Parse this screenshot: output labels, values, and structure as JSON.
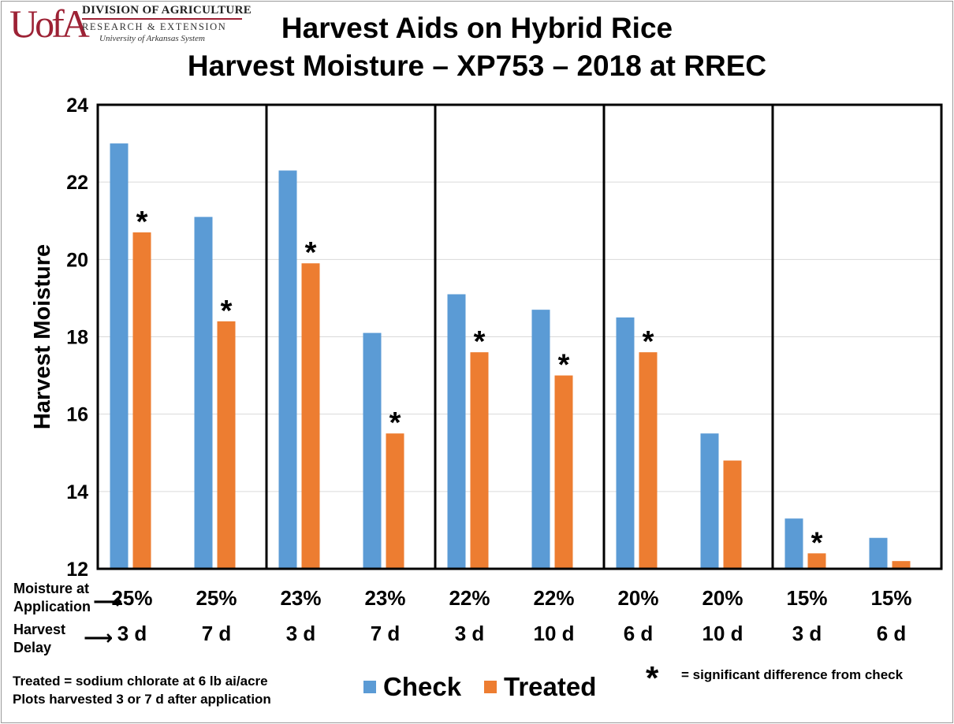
{
  "logo": {
    "mark": "UofA",
    "line1": "DIVISION OF AGRICULTURE",
    "line2": "RESEARCH & EXTENSION",
    "line3": "University of Arkansas System"
  },
  "header": {
    "title_line1": "Harvest Aids on Hybrid Rice",
    "title_line2": "Harvest Moisture – XP753 – 2018 at RREC"
  },
  "row_labels": {
    "moisture_line1": "Moisture at",
    "moisture_line2": "Application",
    "delay_line1": "Harvest",
    "delay_line2": "Delay",
    "arrow": "⟶"
  },
  "footnotes": {
    "line1": "Treated = sodium chlorate at 6 lb ai/acre",
    "line2": "Plots harvested 3 or 7 d after application"
  },
  "legend": {
    "check": "Check",
    "treated": "Treated",
    "sig_star": "*",
    "sig_text": "= significant difference from check"
  },
  "colors": {
    "check": "#5b9bd5",
    "treated": "#ed7d31",
    "frame": "#000000",
    "grid": "#d9d9d9"
  },
  "chart_data": {
    "type": "bar",
    "ylabel": "Harvest Moisture",
    "ylim": [
      12,
      24
    ],
    "yticks": [
      12,
      14,
      16,
      18,
      20,
      22,
      24
    ],
    "grid": true,
    "categories": [
      "3 d",
      "7 d",
      "3 d",
      "7 d",
      "3 d",
      "10 d",
      "6 d",
      "10 d",
      "3 d",
      "6 d"
    ],
    "moisture_at_application": [
      "25%",
      "25%",
      "23%",
      "23%",
      "22%",
      "22%",
      "20%",
      "20%",
      "15%",
      "15%"
    ],
    "harvest_delay": [
      "3 d",
      "7 d",
      "3 d",
      "7 d",
      "3 d",
      "10 d",
      "6 d",
      "10 d",
      "3 d",
      "6 d"
    ],
    "panels": [
      [
        0,
        1
      ],
      [
        2,
        3
      ],
      [
        4,
        5
      ],
      [
        6,
        7
      ],
      [
        8,
        9
      ]
    ],
    "series": [
      {
        "name": "Check",
        "values": [
          23.0,
          21.1,
          22.3,
          18.1,
          19.1,
          18.7,
          18.5,
          15.5,
          13.3,
          12.8
        ]
      },
      {
        "name": "Treated",
        "values": [
          20.7,
          18.4,
          19.9,
          15.5,
          17.6,
          17.0,
          17.6,
          14.8,
          12.4,
          12.2
        ]
      }
    ],
    "significant": [
      true,
      true,
      true,
      true,
      true,
      true,
      true,
      false,
      true,
      false
    ],
    "significance_marker": "*",
    "legend_position": "bottom"
  }
}
